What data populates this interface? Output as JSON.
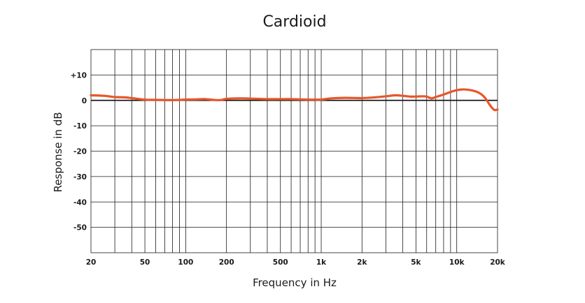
{
  "chart_data": {
    "type": "line",
    "title": "Cardioid",
    "xlabel": "Frequency in Hz",
    "ylabel": "Response in dB",
    "x_scale": "log",
    "xlim": [
      20,
      20000
    ],
    "ylim": [
      -60,
      20
    ],
    "grid": true,
    "x_ticks": [
      {
        "value": 20,
        "label": "20"
      },
      {
        "value": 50,
        "label": "50"
      },
      {
        "value": 100,
        "label": "100"
      },
      {
        "value": 200,
        "label": "200"
      },
      {
        "value": 500,
        "label": "500"
      },
      {
        "value": 1000,
        "label": "1k"
      },
      {
        "value": 2000,
        "label": "2k"
      },
      {
        "value": 5000,
        "label": "5k"
      },
      {
        "value": 10000,
        "label": "10k"
      },
      {
        "value": 20000,
        "label": "20k"
      }
    ],
    "x_gridlines": [
      30,
      40,
      50,
      60,
      70,
      80,
      90,
      100,
      200,
      300,
      400,
      500,
      600,
      700,
      800,
      900,
      1000,
      2000,
      3000,
      4000,
      5000,
      6000,
      7000,
      8000,
      9000,
      10000
    ],
    "y_ticks": [
      {
        "value": 10,
        "label": "+10"
      },
      {
        "value": 0,
        "label": "0"
      },
      {
        "value": -10,
        "label": "-10"
      },
      {
        "value": -20,
        "label": "-20"
      },
      {
        "value": -30,
        "label": "-30"
      },
      {
        "value": -40,
        "label": "-40"
      },
      {
        "value": -50,
        "label": "-50"
      }
    ],
    "y_gridlines": [
      10,
      0,
      -10,
      -20,
      -30,
      -40,
      -50
    ],
    "series": [
      {
        "color": "#e8562a",
        "x": [
          20,
          25,
          30,
          35,
          40,
          50,
          60,
          80,
          100,
          120,
          140,
          160,
          180,
          200,
          250,
          300,
          400,
          500,
          600,
          700,
          800,
          900,
          1000,
          1200,
          1500,
          2000,
          2500,
          3000,
          3500,
          4000,
          4500,
          5000,
          5500,
          6000,
          6500,
          7000,
          8000,
          9000,
          10000,
          11000,
          12000,
          13000,
          14000,
          15000,
          16000,
          17000,
          18000,
          19000,
          20000
        ],
        "y": [
          2.0,
          1.8,
          1.3,
          1.2,
          0.9,
          0.3,
          0.2,
          0.1,
          0.3,
          0.4,
          0.5,
          0.2,
          0.1,
          0.6,
          0.8,
          0.7,
          0.5,
          0.5,
          0.5,
          0.4,
          0.3,
          0.3,
          0.3,
          0.8,
          1.0,
          0.9,
          1.2,
          1.6,
          2.0,
          1.8,
          1.5,
          1.5,
          1.6,
          1.5,
          0.8,
          1.3,
          2.3,
          3.3,
          4.0,
          4.3,
          4.2,
          3.9,
          3.4,
          2.6,
          1.3,
          -0.7,
          -2.6,
          -3.8,
          -3.6
        ]
      }
    ]
  }
}
